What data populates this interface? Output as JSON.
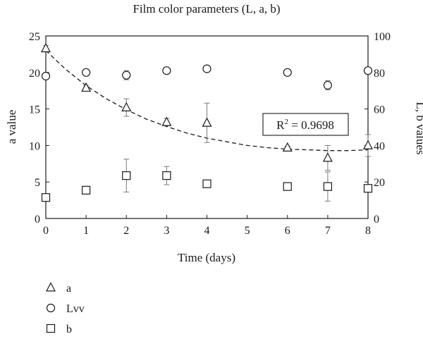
{
  "chart_data": {
    "type": "scatter",
    "title": "Film color parameters (L, a, b)",
    "xlabel": "Time (days)",
    "ylabel_left": "a value",
    "ylabel_right": "L, b values",
    "x_ticks": [
      0,
      1,
      2,
      3,
      4,
      5,
      6,
      7,
      8
    ],
    "xlim": [
      0,
      8
    ],
    "ylim_left": [
      0,
      25
    ],
    "y_ticks_left": [
      0,
      5,
      10,
      15,
      20,
      25
    ],
    "ylim_right": [
      0,
      100
    ],
    "y_ticks_right": [
      0,
      20,
      40,
      60,
      80,
      100
    ],
    "grid": false,
    "legend_position": "bottom-left",
    "annotation": {
      "text_main": "R",
      "text_sup": "2",
      "text_rest": " = 0.9698"
    },
    "series": [
      {
        "name": "a",
        "marker": "triangle",
        "axis": "left",
        "x": [
          0,
          1,
          2,
          3,
          4,
          6,
          7,
          8
        ],
        "y": [
          23.3,
          17.9,
          15.2,
          13.2,
          13.1,
          9.7,
          8.3,
          10.0
        ],
        "err": [
          0.4,
          0.3,
          1.2,
          0.5,
          2.7,
          0.2,
          1.7,
          1.5
        ]
      },
      {
        "name": "Lvv",
        "marker": "circle",
        "axis": "right",
        "x": [
          0,
          1,
          2,
          3,
          4,
          6,
          7,
          8
        ],
        "y": [
          78,
          80,
          78.5,
          81,
          82,
          80,
          73,
          81
        ],
        "err": [
          0,
          0,
          2.5,
          1.5,
          0.8,
          1.0,
          2.5,
          0
        ]
      },
      {
        "name": "b",
        "marker": "square",
        "axis": "right",
        "x": [
          0,
          1,
          2,
          3,
          4,
          6,
          7,
          8
        ],
        "y": [
          11.5,
          15.5,
          23.5,
          23.5,
          19,
          17.5,
          17.5,
          16.5
        ],
        "err": [
          0,
          1.5,
          9,
          5,
          0.5,
          1,
          8,
          1.5
        ]
      }
    ],
    "fit": {
      "series": "a",
      "style": "dashed",
      "x": [
        0,
        0.5,
        1,
        1.5,
        2,
        2.5,
        3,
        3.5,
        4,
        4.5,
        5,
        5.5,
        6,
        6.5,
        7,
        7.5,
        8
      ],
      "y": [
        23.0,
        20.4,
        18.2,
        16.4,
        14.9,
        13.6,
        12.6,
        11.7,
        11.0,
        10.5,
        10.0,
        9.7,
        9.5,
        9.4,
        9.3,
        9.3,
        9.4
      ]
    }
  }
}
